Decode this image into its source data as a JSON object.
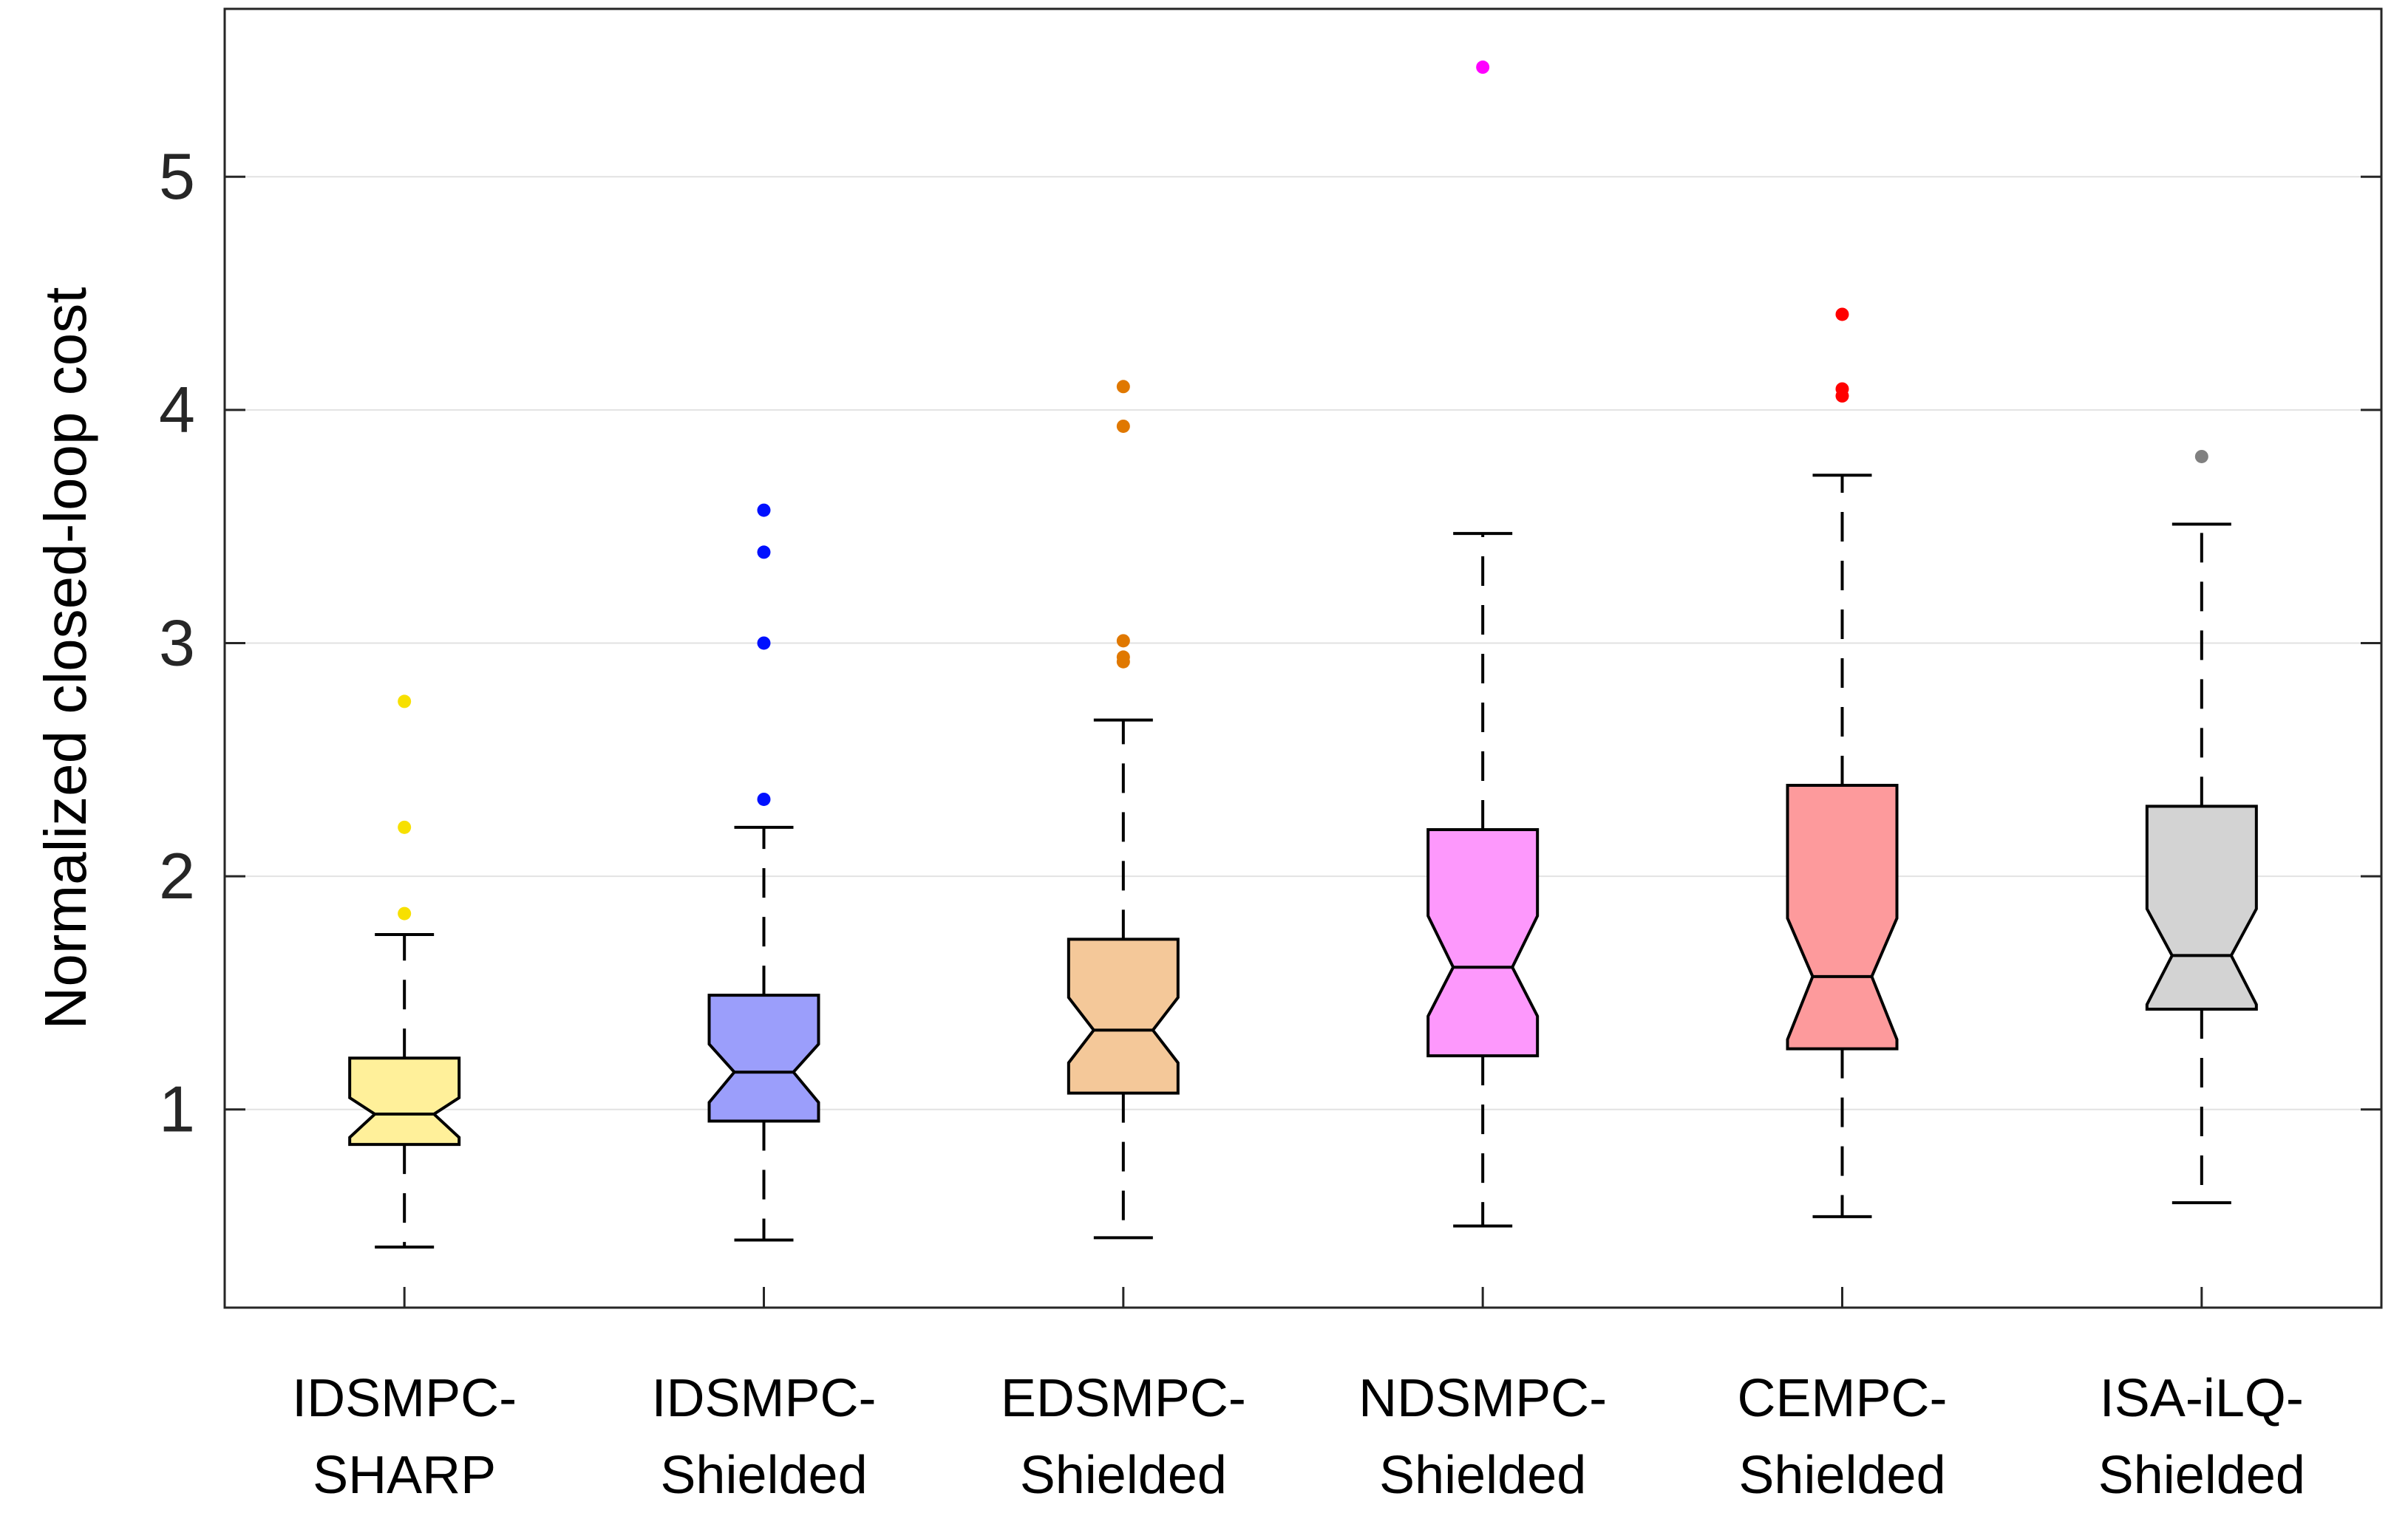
{
  "chart_data": {
    "type": "box",
    "title": "",
    "xlabel": "",
    "ylabel": "Normalized closed-loop cost",
    "ylim": [
      0.15,
      5.72
    ],
    "yticks": [
      1,
      2,
      3,
      4,
      5
    ],
    "grid": "horizontal",
    "notched": true,
    "categories": [
      [
        "IDSMPC-",
        "SHARP"
      ],
      [
        "IDSMPC-",
        "Shielded"
      ],
      [
        "EDSMPC-",
        "Shielded"
      ],
      [
        "NDSMPC-",
        "Shielded"
      ],
      [
        "CEMPC-",
        "Shielded"
      ],
      [
        "ISA-iLQ-",
        "Shielded"
      ]
    ],
    "series": [
      {
        "whisker_low": 0.41,
        "q1": 0.85,
        "median": 0.98,
        "q3": 1.22,
        "whisker_high": 1.75,
        "notch_low": 0.88,
        "notch_high": 1.05,
        "outliers": [
          1.84,
          2.21,
          2.75
        ],
        "fill": "#fff09a",
        "outlier_color": "#f7e000"
      },
      {
        "whisker_low": 0.44,
        "q1": 0.95,
        "median": 1.16,
        "q3": 1.49,
        "whisker_high": 2.21,
        "notch_low": 1.03,
        "notch_high": 1.28,
        "outliers": [
          2.33,
          3.0,
          3.39,
          3.57
        ],
        "fill": "#9b9efb",
        "outlier_color": "#0010ff"
      },
      {
        "whisker_low": 0.45,
        "q1": 1.07,
        "median": 1.34,
        "q3": 1.73,
        "whisker_high": 2.67,
        "notch_low": 1.2,
        "notch_high": 1.48,
        "outliers": [
          2.92,
          2.94,
          3.01,
          3.93,
          4.1
        ],
        "fill": "#f4c899",
        "outlier_color": "#e07800"
      },
      {
        "whisker_low": 0.5,
        "q1": 1.23,
        "median": 1.61,
        "q3": 2.2,
        "whisker_high": 3.47,
        "notch_low": 1.4,
        "notch_high": 1.83,
        "outliers": [
          5.47
        ],
        "fill": "#fd98fc",
        "outlier_color": "#ff00ff"
      },
      {
        "whisker_low": 0.54,
        "q1": 1.26,
        "median": 1.57,
        "q3": 2.39,
        "whisker_high": 3.72,
        "notch_low": 1.3,
        "notch_high": 1.82,
        "outliers": [
          4.06,
          4.09,
          4.41
        ],
        "fill": "#fd9a9c",
        "outlier_color": "#ff0000"
      },
      {
        "whisker_low": 0.6,
        "q1": 1.43,
        "median": 1.66,
        "q3": 2.3,
        "whisker_high": 3.51,
        "notch_low": 1.45,
        "notch_high": 1.86,
        "outliers": [
          3.8
        ],
        "fill": "#d3d3d3",
        "outlier_color": "#808080"
      }
    ]
  }
}
